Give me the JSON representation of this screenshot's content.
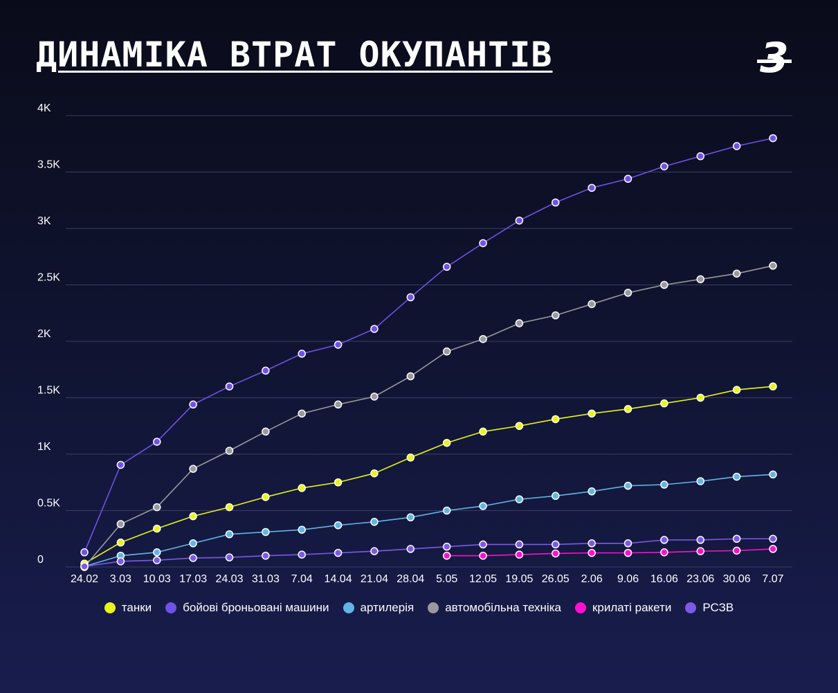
{
  "header": {
    "title": "ДИНАМІКА ВТРАТ ОКУПАНТІВ",
    "logo_text": "3"
  },
  "colors": {
    "tanks": "#e8f51a",
    "bbm": "#6f52e8",
    "artillery": "#63b5e6",
    "vehicles": "#9a9a9e",
    "cruise_missiles": "#ff10cf",
    "mlrs": "#7d5ae6",
    "gridline": "#3a3f62"
  },
  "chart_data": {
    "type": "line",
    "x": [
      "24.02",
      "3.03",
      "10.03",
      "17.03",
      "24.03",
      "31.03",
      "7.04",
      "14.04",
      "21.04",
      "28.04",
      "5.05",
      "12.05",
      "19.05",
      "26.05",
      "2.06",
      "9.06",
      "16.06",
      "23.06",
      "30.06",
      "7.07"
    ],
    "ylim": [
      0,
      4000
    ],
    "yticks": [
      0,
      500,
      1000,
      1500,
      2000,
      2500,
      3000,
      3500,
      4000
    ],
    "ytick_labels": [
      "0",
      "0.5K",
      "1K",
      "1.5K",
      "2K",
      "2.5K",
      "3K",
      "3.5K",
      "4K"
    ],
    "grid": true,
    "legend_position": "bottom",
    "series": [
      {
        "name": "танки",
        "color_key": "tanks",
        "values": [
          30,
          217,
          340,
          450,
          530,
          620,
          700,
          750,
          830,
          970,
          1100,
          1200,
          1250,
          1310,
          1360,
          1400,
          1450,
          1500,
          1570,
          1600
        ]
      },
      {
        "name": "бойові броньовані машини",
        "color_key": "bbm",
        "values": [
          130,
          905,
          1110,
          1440,
          1600,
          1740,
          1890,
          1970,
          2110,
          2390,
          2660,
          2870,
          3070,
          3230,
          3360,
          3440,
          3550,
          3640,
          3730,
          3800
        ]
      },
      {
        "name": "артилерія",
        "color_key": "artillery",
        "values": [
          5,
          100,
          130,
          210,
          290,
          310,
          330,
          370,
          400,
          440,
          500,
          540,
          600,
          630,
          670,
          720,
          730,
          760,
          800,
          820
        ]
      },
      {
        "name": "автомобільна техніка",
        "color_key": "vehicles",
        "values": [
          0,
          380,
          530,
          870,
          1030,
          1200,
          1360,
          1440,
          1510,
          1690,
          1910,
          2020,
          2160,
          2230,
          2330,
          2430,
          2500,
          2550,
          2600,
          2670
        ]
      },
      {
        "name": "крилаті ракети",
        "color_key": "cruise_missiles",
        "values": [
          null,
          null,
          null,
          null,
          null,
          null,
          null,
          null,
          null,
          null,
          100,
          100,
          110,
          120,
          125,
          125,
          130,
          140,
          145,
          160
        ]
      },
      {
        "name": "РСЗВ",
        "color_key": "mlrs",
        "values": [
          5,
          50,
          60,
          80,
          85,
          100,
          110,
          125,
          140,
          160,
          180,
          200,
          200,
          200,
          210,
          210,
          240,
          240,
          250,
          250
        ]
      }
    ]
  }
}
